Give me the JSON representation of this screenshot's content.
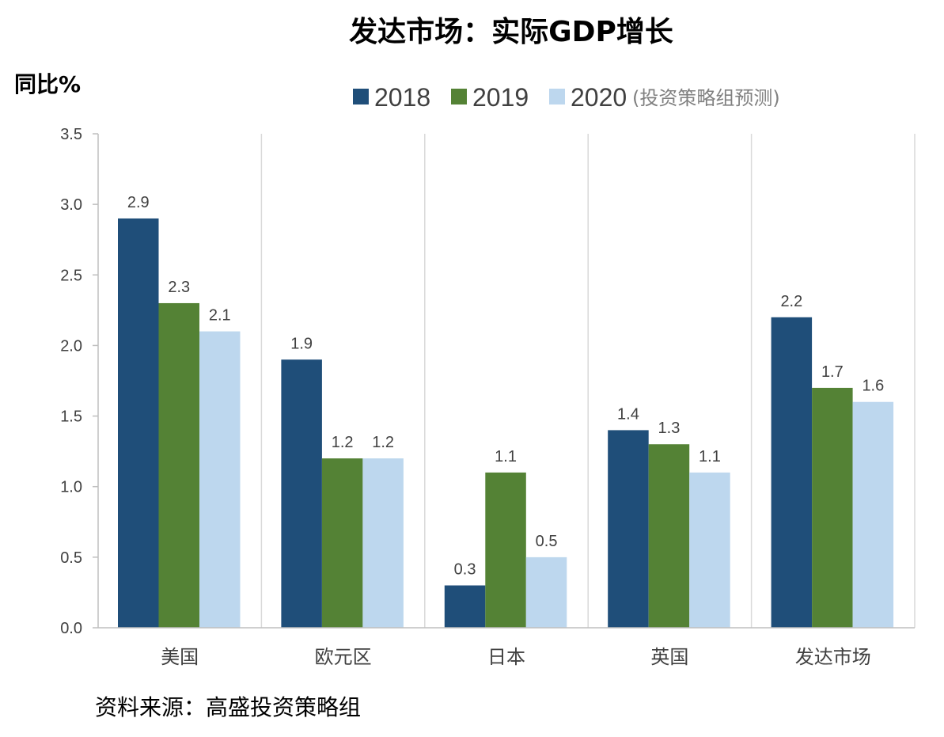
{
  "chart_data": {
    "type": "bar",
    "title": "发达市场：实际GDP增长",
    "ylabel": "同比%",
    "categories": [
      "美国",
      "欧元区",
      "日本",
      "英国",
      "发达市场"
    ],
    "series": [
      {
        "name": "2018",
        "color": "#1F4E79",
        "values": [
          2.9,
          1.9,
          0.3,
          1.4,
          2.2
        ]
      },
      {
        "name": "2019",
        "color": "#548235",
        "values": [
          2.3,
          1.2,
          1.1,
          1.3,
          1.7
        ]
      },
      {
        "name": "2020",
        "color": "#BDD7EE",
        "values": [
          2.1,
          1.2,
          0.5,
          1.1,
          1.6
        ]
      }
    ],
    "legend_note": "(投资策略组预测)",
    "yticks": [
      "0.0",
      "0.5",
      "1.0",
      "1.5",
      "2.0",
      "2.5",
      "3.0",
      "3.5"
    ],
    "ylim": [
      0,
      3.5
    ],
    "grid": "vertical separators between categories",
    "legend_position": "top-right",
    "source": "资料来源：高盛投资策略组"
  }
}
